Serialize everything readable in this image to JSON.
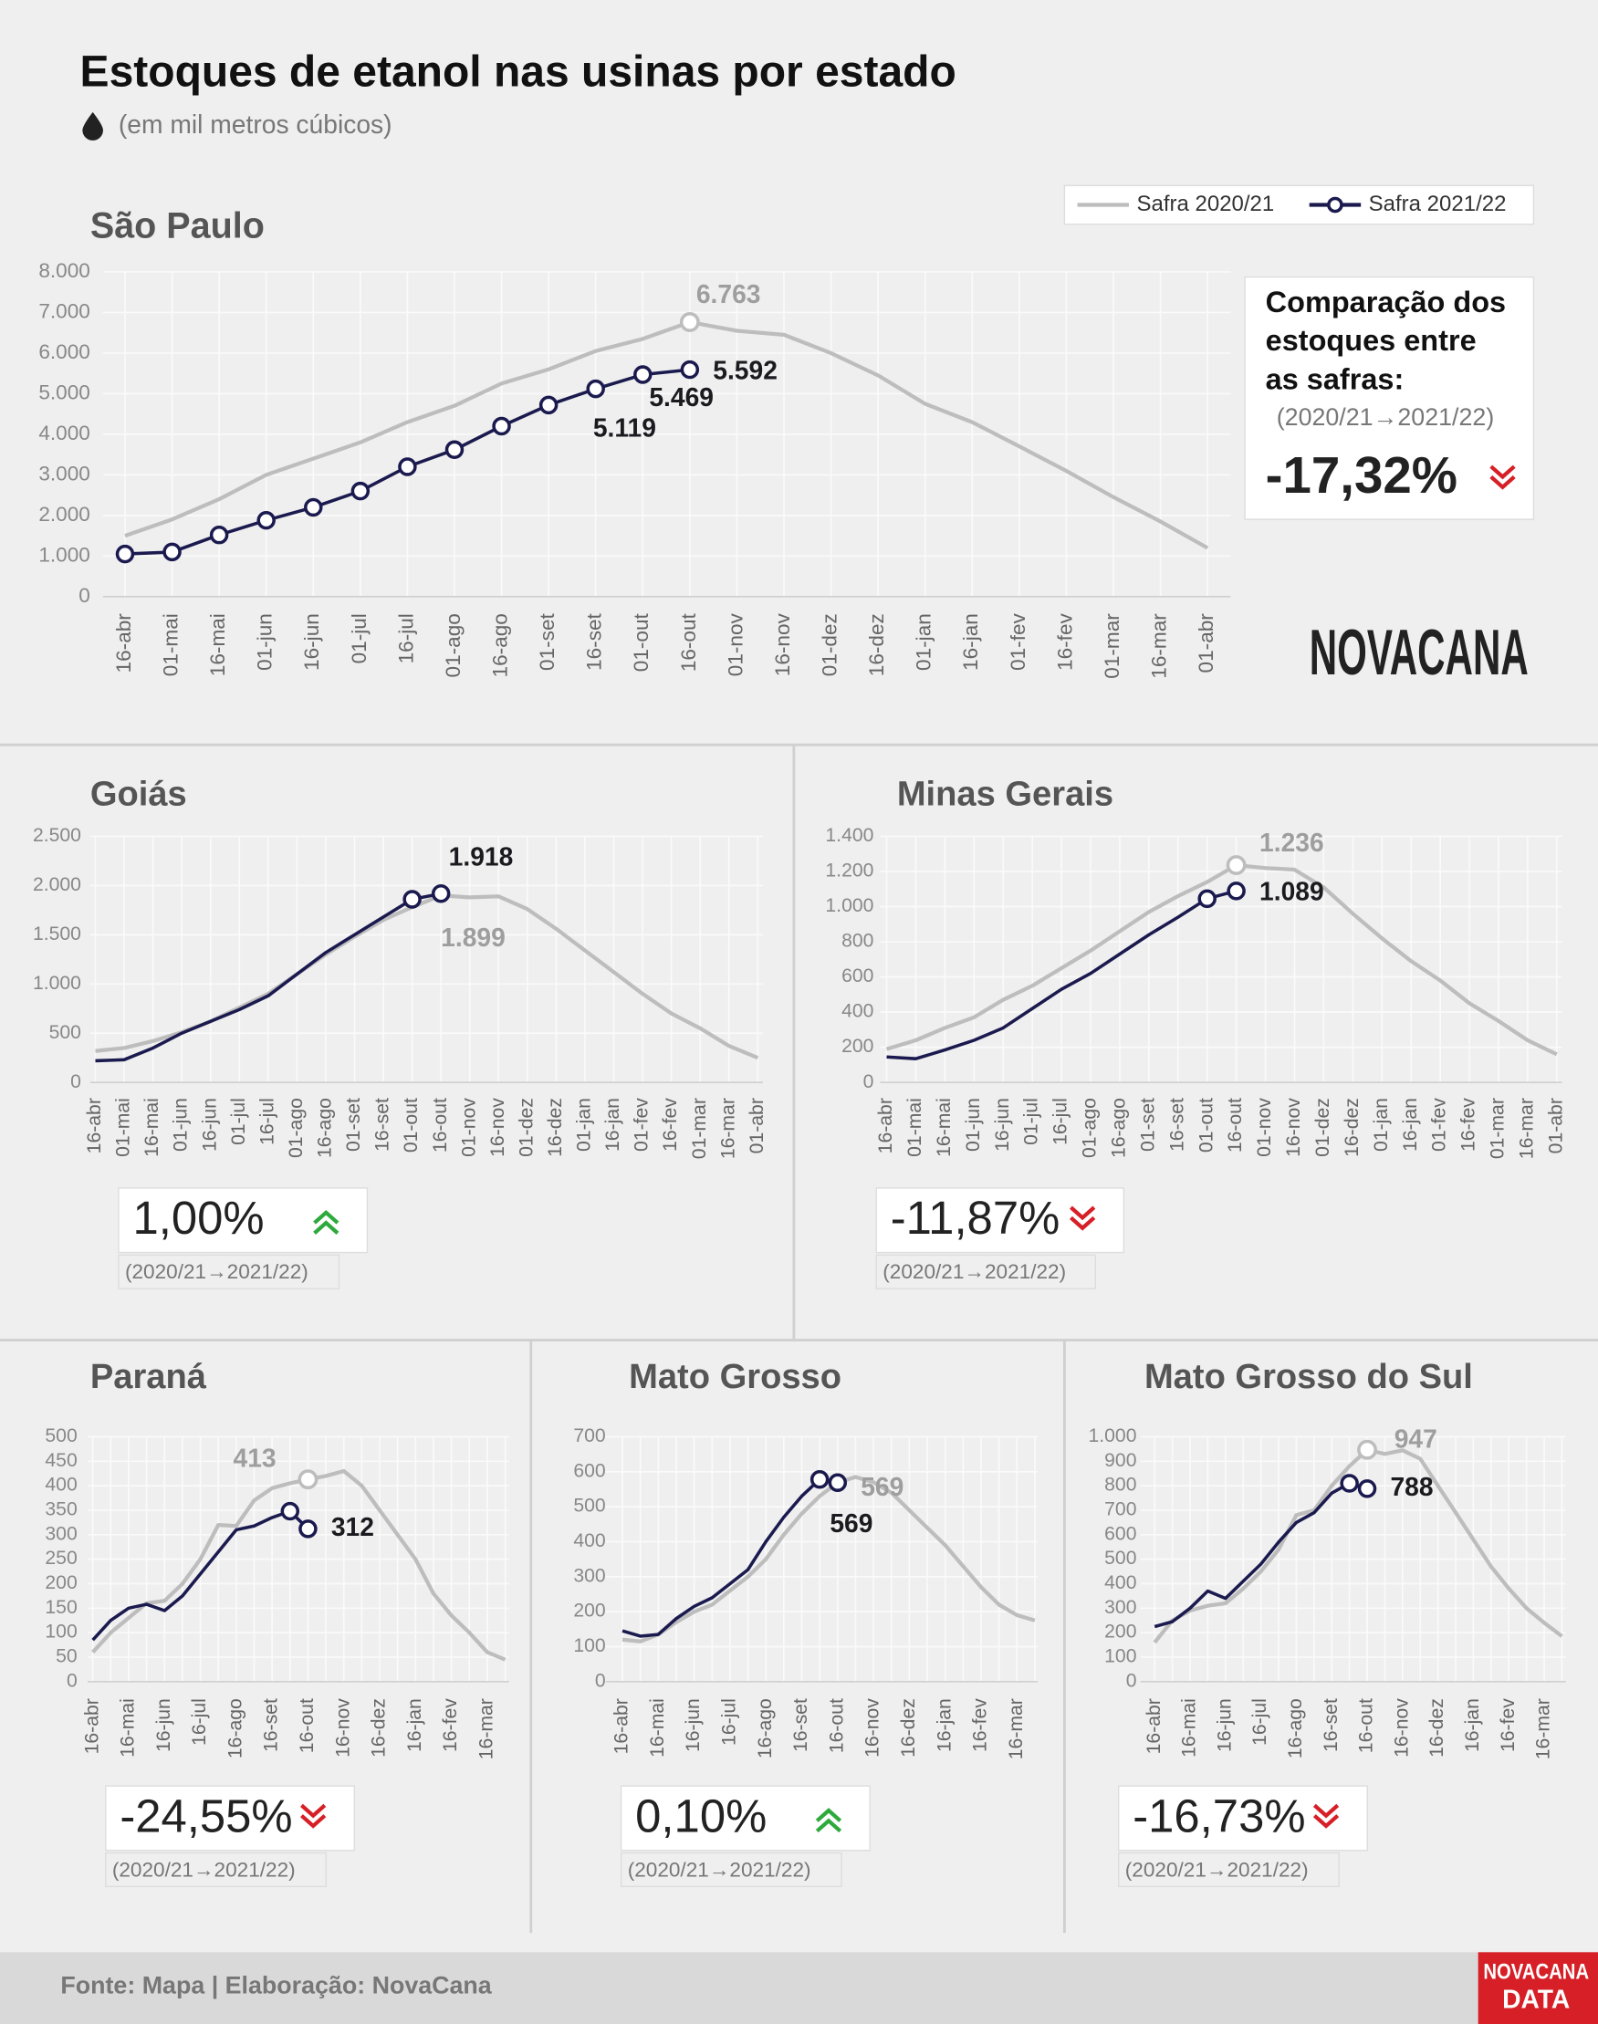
{
  "title": "Estoques de etanol nas usinas por estado",
  "subtitle": "(em mil metros cúbicos)",
  "source": "Fonte: Mapa | Elaboração: NovaCana",
  "brand": "NOVACANA",
  "brand_footer": [
    "NOVACANA",
    "DATA"
  ],
  "chart_data": [
    {
      "type": "line",
      "title": "São Paulo",
      "legend": "upper right",
      "categories": [
        "16-abr",
        "01-mai",
        "16-mai",
        "01-jun",
        "16-jun",
        "01-jul",
        "16-jul",
        "01-ago",
        "16-ago",
        "01-set",
        "16-set",
        "01-out",
        "16-out",
        "01-nov",
        "16-nov",
        "01-dez",
        "16-dez",
        "01-jan",
        "16-jan",
        "01-fev",
        "16-fev",
        "01-mar",
        "16-mar",
        "01-abr"
      ],
      "series": [
        {
          "name": "Safra 2020/21",
          "color": "#bdbdbd",
          "values": [
            1500,
            1900,
            2400,
            3000,
            3400,
            3800,
            4300,
            4700,
            5250,
            5600,
            6050,
            6350,
            6763,
            6550,
            6450,
            6000,
            5450,
            4750,
            4300,
            3700,
            3100,
            2450,
            1850,
            1200
          ],
          "value_labels": [
            null,
            null,
            null,
            null,
            null,
            null,
            null,
            null,
            null,
            null,
            null,
            null,
            "6.763",
            null,
            null,
            null,
            null,
            null,
            null,
            null,
            null,
            null,
            null,
            null
          ]
        },
        {
          "name": "Safra 2021/22",
          "color": "#1b1a4f",
          "values": [
            1050,
            1100,
            1520,
            1880,
            2200,
            2600,
            3200,
            3620,
            4200,
            4720,
            5119,
            5469,
            5592,
            null,
            null,
            null,
            null,
            null,
            null,
            null,
            null,
            null,
            null,
            null
          ],
          "value_labels": [
            null,
            null,
            null,
            null,
            null,
            null,
            null,
            null,
            null,
            null,
            "5.119",
            "5.469",
            "5.592",
            null,
            null,
            null,
            null,
            null,
            null,
            null,
            null,
            null,
            null,
            null
          ]
        }
      ],
      "ylim": [
        0,
        8000
      ],
      "yticks": [
        0,
        {
          "value": 1000,
          "label": "1.000"
        },
        {
          "value": 2000,
          "label": "2.000"
        },
        {
          "value": 3000,
          "label": "3.000"
        },
        {
          "value": 4000,
          "label": "4.000"
        },
        {
          "value": 5000,
          "label": "5.000"
        },
        {
          "value": 6000,
          "label": "6.000"
        },
        {
          "value": 7000,
          "label": "7.000"
        },
        {
          "value": 8000,
          "label": "8.000"
        }
      ],
      "grid": true,
      "comparison_title": [
        "Comparação dos",
        "estoques entre",
        "as safras:"
      ],
      "comparison_note": "(2020/21→2021/22)",
      "change": -17.32,
      "change_label": "-17,32%"
    },
    {
      "type": "line",
      "title": "Goiás",
      "categories": [
        "16-abr",
        "01-mai",
        "16-mai",
        "01-jun",
        "16-jun",
        "01-jul",
        "16-jul",
        "01-ago",
        "16-ago",
        "01-set",
        "16-set",
        "01-out",
        "16-out",
        "01-nov",
        "16-nov",
        "01-dez",
        "16-dez",
        "01-jan",
        "16-jan",
        "01-fev",
        "16-fev",
        "01-mar",
        "16-mar",
        "01-abr"
      ],
      "series": [
        {
          "name": "Safra 2020/21",
          "color": "#bdbdbd",
          "values": [
            320,
            350,
            420,
            510,
            620,
            760,
            900,
            1100,
            1300,
            1480,
            1650,
            1780,
            1899,
            1880,
            1890,
            1760,
            1560,
            1340,
            1120,
            900,
            700,
            550,
            370,
            250
          ],
          "value_labels": [
            null,
            null,
            null,
            null,
            null,
            null,
            null,
            null,
            null,
            null,
            null,
            null,
            "1.899",
            null,
            null,
            null,
            null,
            null,
            null,
            null,
            null,
            null,
            null,
            null
          ]
        },
        {
          "name": "Safra 2021/22",
          "color": "#1b1a4f",
          "values": [
            220,
            230,
            350,
            500,
            620,
            740,
            880,
            1100,
            1320,
            1500,
            1680,
            1860,
            1918,
            null,
            null,
            null,
            null,
            null,
            null,
            null,
            null,
            null,
            null,
            null
          ],
          "value_labels": [
            null,
            null,
            null,
            null,
            null,
            null,
            null,
            null,
            null,
            null,
            null,
            null,
            "1.918",
            null,
            null,
            null,
            null,
            null,
            null,
            null,
            null,
            null,
            null,
            null
          ]
        }
      ],
      "ylim": [
        0,
        2500
      ],
      "yticks": [
        0,
        500,
        {
          "value": 1000,
          "label": "1.000"
        },
        {
          "value": 1500,
          "label": "1.500"
        },
        {
          "value": 2000,
          "label": "2.000"
        },
        {
          "value": 2500,
          "label": "2.500"
        }
      ],
      "grid": true,
      "comparison_note": "(2020/21→2021/22)",
      "change": 1.0,
      "change_label": "1,00%"
    },
    {
      "type": "line",
      "title": "Minas Gerais",
      "categories": [
        "16-abr",
        "01-mai",
        "16-mai",
        "01-jun",
        "16-jun",
        "01-jul",
        "16-jul",
        "01-ago",
        "16-ago",
        "01-set",
        "16-set",
        "01-out",
        "16-out",
        "01-nov",
        "16-nov",
        "01-dez",
        "16-dez",
        "01-jan",
        "16-jan",
        "01-fev",
        "16-fev",
        "01-mar",
        "16-mar",
        "01-abr"
      ],
      "series": [
        {
          "name": "Safra 2020/21",
          "color": "#bdbdbd",
          "values": [
            190,
            240,
            310,
            370,
            470,
            550,
            650,
            750,
            860,
            970,
            1060,
            1140,
            1236,
            1220,
            1210,
            1110,
            960,
            820,
            690,
            580,
            450,
            350,
            240,
            160
          ],
          "value_labels": [
            null,
            null,
            null,
            null,
            null,
            null,
            null,
            null,
            null,
            null,
            null,
            null,
            "1.236",
            null,
            null,
            null,
            null,
            null,
            null,
            null,
            null,
            null,
            null,
            null
          ]
        },
        {
          "name": "Safra 2021/22",
          "color": "#1b1a4f",
          "values": [
            145,
            135,
            185,
            240,
            310,
            420,
            530,
            620,
            730,
            840,
            940,
            1045,
            1089,
            null,
            null,
            null,
            null,
            null,
            null,
            null,
            null,
            null,
            null,
            null
          ],
          "value_labels": [
            null,
            null,
            null,
            null,
            null,
            null,
            null,
            null,
            null,
            null,
            null,
            null,
            "1.089",
            null,
            null,
            null,
            null,
            null,
            null,
            null,
            null,
            null,
            null,
            null
          ]
        }
      ],
      "ylim": [
        0,
        1400
      ],
      "yticks": [
        0,
        200,
        400,
        600,
        800,
        {
          "value": 1000,
          "label": "1.000"
        },
        {
          "value": 1200,
          "label": "1.200"
        },
        {
          "value": 1400,
          "label": "1.400"
        }
      ],
      "grid": true,
      "comparison_note": "(2020/21→2021/22)",
      "change": -11.87,
      "change_label": "-11,87%"
    },
    {
      "type": "line",
      "title": "Paraná",
      "categories": [
        "16-abr",
        null,
        "16-mai",
        null,
        "16-jun",
        null,
        "16-jul",
        null,
        "16-ago",
        null,
        "16-set",
        null,
        "16-out",
        null,
        "16-nov",
        null,
        "16-dez",
        null,
        "16-jan",
        null,
        "16-fev",
        null,
        "16-mar",
        null
      ],
      "series": [
        {
          "name": "Safra 2020/21",
          "color": "#bdbdbd",
          "values": [
            60,
            100,
            130,
            160,
            165,
            200,
            250,
            320,
            318,
            370,
            395,
            405,
            413,
            420,
            430,
            400,
            350,
            300,
            250,
            180,
            135,
            100,
            60,
            45
          ],
          "value_labels": [
            null,
            null,
            null,
            null,
            null,
            null,
            null,
            null,
            null,
            null,
            null,
            null,
            "413",
            null,
            null,
            null,
            null,
            null,
            null,
            null,
            null,
            null,
            null,
            null
          ]
        },
        {
          "name": "Safra 2021/22",
          "color": "#1b1a4f",
          "values": [
            85,
            125,
            150,
            158,
            145,
            175,
            220,
            265,
            310,
            318,
            335,
            348,
            312,
            null,
            null,
            null,
            null,
            null,
            null,
            null,
            null,
            null,
            null,
            null
          ],
          "value_labels": [
            null,
            null,
            null,
            null,
            null,
            null,
            null,
            null,
            null,
            null,
            null,
            null,
            "312",
            null,
            null,
            null,
            null,
            null,
            null,
            null,
            null,
            null,
            null,
            null
          ]
        }
      ],
      "ylim": [
        0,
        500
      ],
      "yticks": [
        0,
        50,
        100,
        150,
        200,
        250,
        300,
        350,
        400,
        450,
        500
      ],
      "grid": true,
      "comparison_note": "(2020/21→2021/22)",
      "change": -24.55,
      "change_label": "-24,55%"
    },
    {
      "type": "line",
      "title": "Mato Grosso",
      "categories": [
        "16-abr",
        null,
        "16-mai",
        null,
        "16-jun",
        null,
        "16-jul",
        null,
        "16-ago",
        null,
        "16-set",
        null,
        "16-out",
        null,
        "16-nov",
        null,
        "16-dez",
        null,
        "16-jan",
        null,
        "16-fev",
        null,
        "16-mar",
        null
      ],
      "series": [
        {
          "name": "Safra 2020/21",
          "color": "#bdbdbd",
          "values": [
            120,
            115,
            135,
            170,
            200,
            220,
            260,
            300,
            350,
            420,
            480,
            530,
            569,
            585,
            570,
            540,
            490,
            440,
            390,
            330,
            270,
            220,
            190,
            175
          ],
          "value_labels": [
            null,
            null,
            null,
            null,
            null,
            null,
            null,
            null,
            null,
            null,
            null,
            null,
            "569",
            null,
            null,
            null,
            null,
            null,
            null,
            null,
            null,
            null,
            null,
            null
          ]
        },
        {
          "name": "Safra 2021/22",
          "color": "#1b1a4f",
          "values": [
            145,
            130,
            135,
            180,
            215,
            240,
            280,
            320,
            400,
            470,
            530,
            578,
            569,
            null,
            null,
            null,
            null,
            null,
            null,
            null,
            null,
            null,
            null,
            null
          ],
          "value_labels": [
            null,
            null,
            null,
            null,
            null,
            null,
            null,
            null,
            null,
            null,
            null,
            null,
            "569",
            null,
            null,
            null,
            null,
            null,
            null,
            null,
            null,
            null,
            null,
            null
          ]
        }
      ],
      "ylim": [
        0,
        700
      ],
      "yticks": [
        0,
        100,
        200,
        300,
        400,
        500,
        600,
        700
      ],
      "grid": true,
      "comparison_note": "(2020/21→2021/22)",
      "change": 0.1,
      "change_label": "0,10%"
    },
    {
      "type": "line",
      "title": "Mato Grosso do Sul",
      "categories": [
        "16-abr",
        null,
        "16-mai",
        null,
        "16-jun",
        null,
        "16-jul",
        null,
        "16-ago",
        null,
        "16-set",
        null,
        "16-out",
        null,
        "16-nov",
        null,
        "16-dez",
        null,
        "16-jan",
        null,
        "16-fev",
        null,
        "16-mar",
        null
      ],
      "series": [
        {
          "name": "Safra 2020/21",
          "color": "#bdbdbd",
          "values": [
            160,
            250,
            290,
            310,
            320,
            380,
            450,
            540,
            680,
            700,
            800,
            880,
            947,
            930,
            945,
            910,
            800,
            690,
            580,
            470,
            380,
            300,
            240,
            185
          ],
          "value_labels": [
            null,
            null,
            null,
            null,
            null,
            null,
            null,
            null,
            null,
            null,
            null,
            null,
            "947",
            null,
            null,
            null,
            null,
            null,
            null,
            null,
            null,
            null,
            null,
            null
          ]
        },
        {
          "name": "Safra 2021/22",
          "color": "#1b1a4f",
          "values": [
            225,
            245,
            300,
            370,
            340,
            410,
            480,
            570,
            650,
            690,
            770,
            810,
            788,
            null,
            null,
            null,
            null,
            null,
            null,
            null,
            null,
            null,
            null,
            null
          ],
          "value_labels": [
            null,
            null,
            null,
            null,
            null,
            null,
            null,
            null,
            null,
            null,
            null,
            null,
            "788",
            null,
            null,
            null,
            null,
            null,
            null,
            null,
            null,
            null,
            null,
            null
          ]
        }
      ],
      "ylim": [
        0,
        1000
      ],
      "yticks": [
        0,
        100,
        200,
        300,
        400,
        500,
        600,
        700,
        800,
        900,
        {
          "value": 1000,
          "label": "1.000"
        }
      ],
      "grid": true,
      "comparison_note": "(2020/21→2021/22)",
      "change": -16.73,
      "change_label": "-16,73%"
    }
  ]
}
